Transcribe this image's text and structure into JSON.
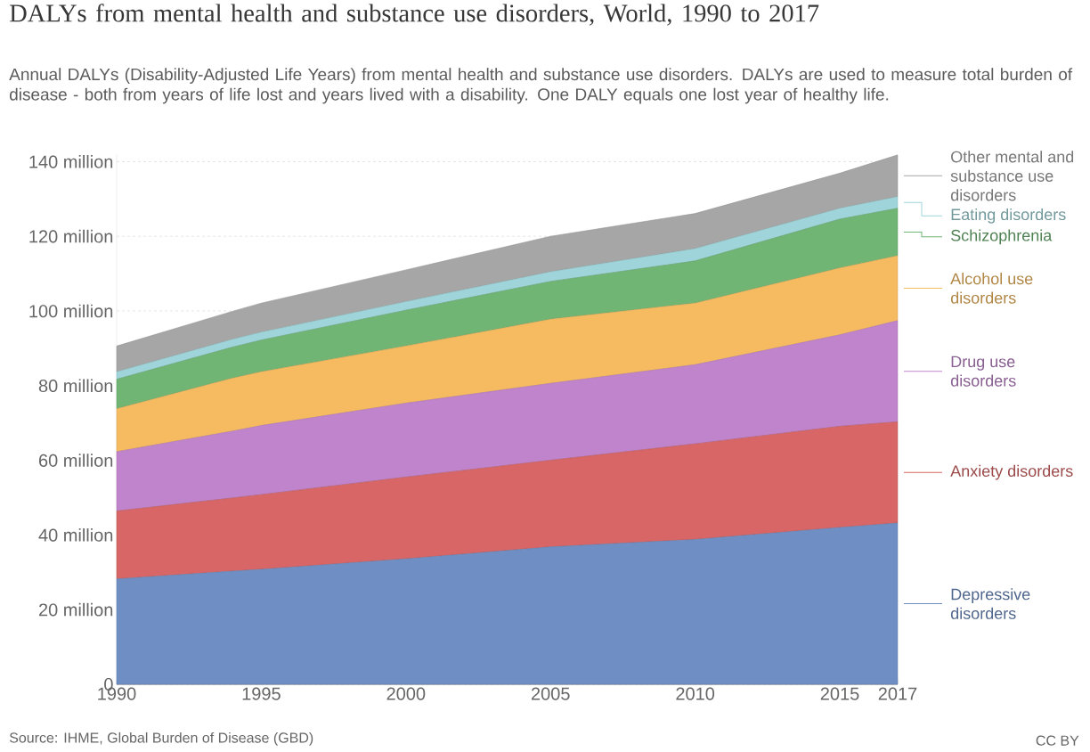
{
  "chart_data": {
    "type": "area",
    "stacked": true,
    "title": "DALYs from mental health and substance use disorders, World, 1990 to 2017",
    "subtitle": "Annual DALYs (Disability-Adjusted Life Years) from mental health and substance use disorders. DALYs are used to measure total burden of disease - both from years of life lost and years lived with a disability. One DALY equals one lost year of healthy life.",
    "x": [
      1990,
      1994,
      1995,
      2000,
      2005,
      2010,
      2015,
      2017
    ],
    "series": [
      {
        "name": "Depressive disorders",
        "color": "#6f8fc4",
        "values": [
          28.2,
          30.3,
          30.8,
          33.6,
          36.8,
          38.8,
          42.0,
          43.2
        ]
      },
      {
        "name": "Anxiety disorders",
        "color": "#d86666",
        "values": [
          18.2,
          19.6,
          20.0,
          21.9,
          23.2,
          25.6,
          27.1,
          27.1
        ]
      },
      {
        "name": "Drug use disorders",
        "color": "#c084cc",
        "values": [
          15.9,
          17.9,
          18.5,
          19.8,
          20.6,
          21.2,
          24.5,
          27.1
        ]
      },
      {
        "name": "Alcohol use disorders",
        "color": "#f6bb61",
        "values": [
          11.5,
          14.2,
          14.4,
          15.3,
          17.2,
          16.5,
          17.9,
          17.4
        ]
      },
      {
        "name": "Schizophrenia",
        "color": "#70b574",
        "values": [
          7.9,
          8.3,
          8.5,
          9.6,
          10.1,
          11.3,
          13.1,
          12.7
        ]
      },
      {
        "name": "Eating disorders",
        "color": "#9fd5da",
        "values": [
          2.0,
          2.1,
          2.1,
          2.3,
          2.6,
          3.3,
          2.9,
          3.1
        ]
      },
      {
        "name": "Other mental and substance use disorders",
        "color": "#a6a6a6",
        "values": [
          6.9,
          7.5,
          7.8,
          8.5,
          9.5,
          9.4,
          9.4,
          11.2
        ]
      }
    ],
    "xlim": [
      1990,
      2017
    ],
    "xticks": [
      1990,
      1995,
      2000,
      2005,
      2010,
      2015,
      2017
    ],
    "ylim": [
      0,
      142
    ],
    "legend": "right",
    "yticks": [
      0,
      {
        "value": 20,
        "label": "20 million"
      },
      {
        "value": 40,
        "label": "40 million"
      },
      {
        "value": 60,
        "label": "60 million"
      },
      {
        "value": 80,
        "label": "80 million"
      },
      {
        "value": 100,
        "label": "100 million"
      },
      {
        "value": 120,
        "label": "120 million"
      },
      {
        "value": 140,
        "label": "140 million"
      }
    ],
    "grid": "y",
    "annotations": [
      "Source: IHME, Global Burden of Disease (GBD)",
      "CC BY"
    ]
  }
}
